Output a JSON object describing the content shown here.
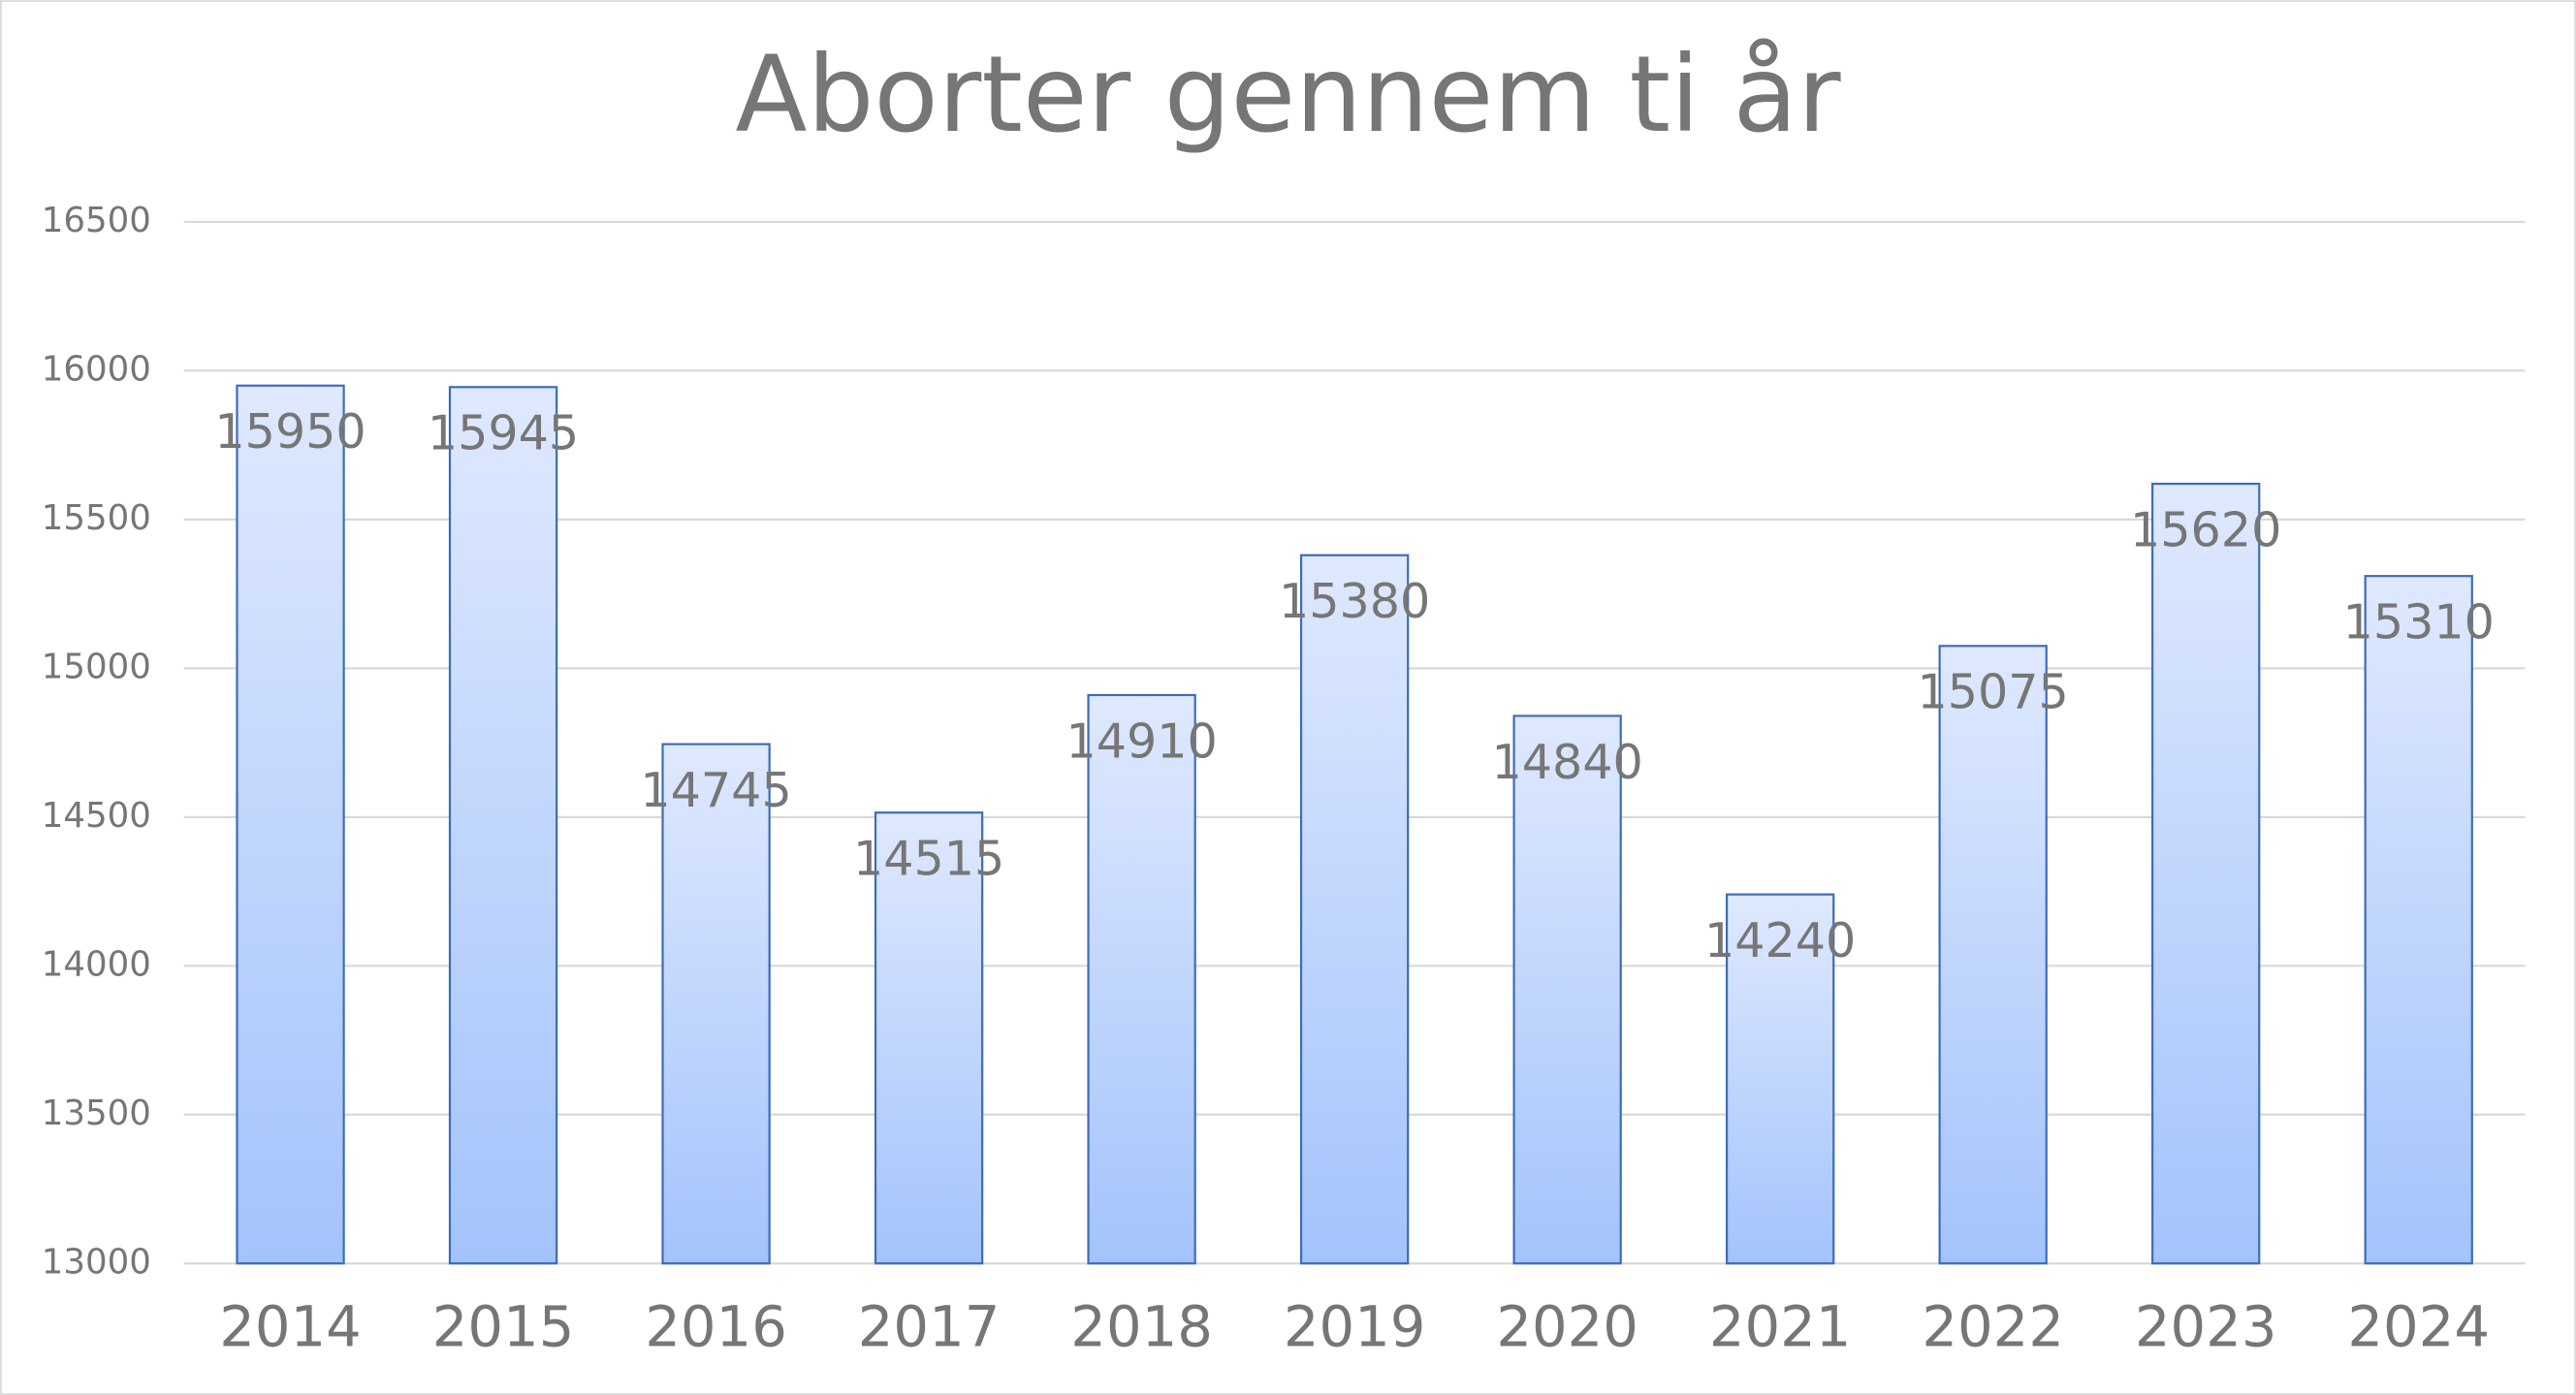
{
  "chart_data": {
    "type": "bar",
    "title": "Aborter gennem ti år",
    "categories": [
      "2014",
      "2015",
      "2016",
      "2017",
      "2018",
      "2019",
      "2020",
      "2021",
      "2022",
      "2023",
      "2024"
    ],
    "values": [
      15950,
      15945,
      14745,
      14515,
      14910,
      15380,
      14840,
      14240,
      15075,
      15620,
      15310
    ],
    "color": "#a3c3fb",
    "ylim": [
      13000,
      16500
    ],
    "yticks": [
      13000,
      13500,
      14000,
      14500,
      15000,
      15500,
      16000,
      16500
    ],
    "grid": true
  }
}
